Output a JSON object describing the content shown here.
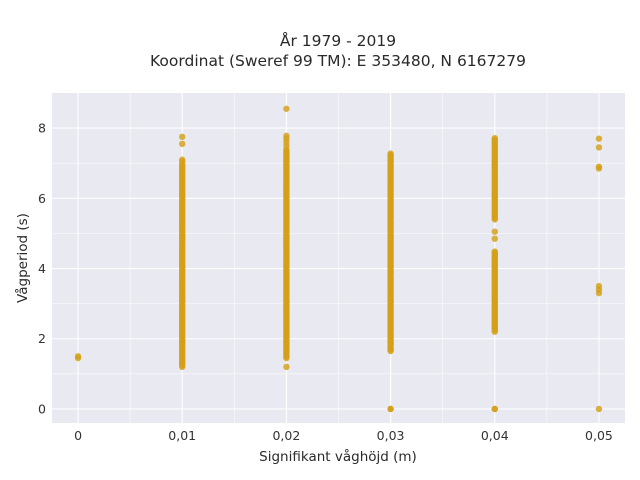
{
  "chart_data": {
    "type": "scatter",
    "title_lines": [
      "År 1979 - 2019",
      "Koordinat (Sweref 99 TM): E 353480, N 6167279"
    ],
    "xlabel": "Signifikant våghöjd (m)",
    "ylabel": "Vågperiod (s)",
    "xlim": [
      -0.0025,
      0.0525
    ],
    "ylim": [
      -0.4,
      9.0
    ],
    "x_ticks": [
      0,
      0.01,
      0.02,
      0.03,
      0.04,
      0.05
    ],
    "x_tick_labels": [
      "0",
      "0,01",
      "0,02",
      "0,03",
      "0,04",
      "0,05"
    ],
    "y_ticks": [
      0,
      2,
      4,
      6,
      8
    ],
    "y_tick_labels": [
      "0",
      "2",
      "4",
      "6",
      "8"
    ],
    "grid": true,
    "marker_color": "#D4A017",
    "plot_background": "#E9E9F1",
    "points": {
      "x_0": [
        1.45,
        1.5
      ],
      "x_0.01": {
        "range": [
          1.2,
          7.0
        ],
        "extra": [
          7.05,
          7.1,
          7.55,
          7.75
        ]
      },
      "x_0.02": {
        "range": [
          1.45,
          7.4
        ],
        "extra": [
          1.2,
          7.5,
          7.6,
          7.7,
          7.78,
          8.55
        ]
      },
      "x_0.03": {
        "range": [
          1.65,
          7.3
        ],
        "extra": [
          0,
          0
        ]
      },
      "x_0.04": {
        "ranges": [
          [
            5.4,
            7.75
          ],
          [
            2.25,
            4.5
          ]
        ],
        "extra": [
          0,
          0,
          4.85,
          5.05,
          2.2
        ]
      },
      "x_0.05": [
        0,
        3.3,
        3.4,
        3.5,
        6.85,
        6.9,
        7.45,
        7.7
      ]
    }
  }
}
